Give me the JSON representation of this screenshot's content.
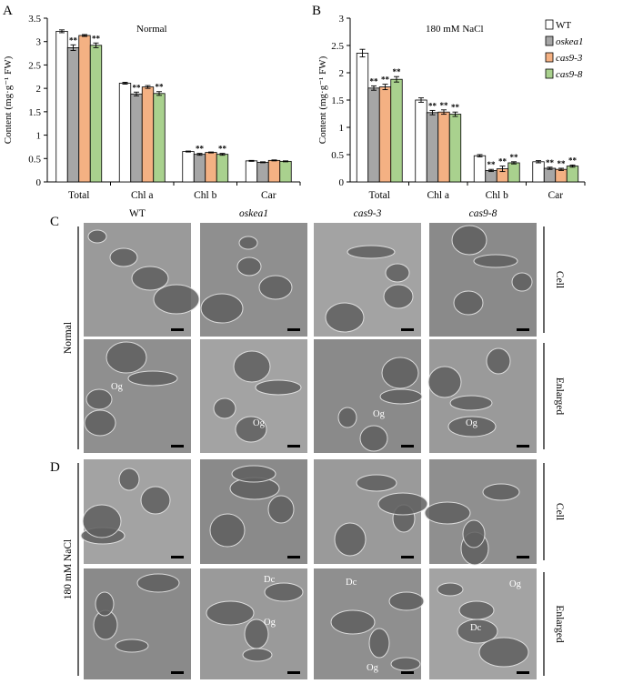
{
  "panels": {
    "A": "A",
    "B": "B",
    "C": "C",
    "D": "D"
  },
  "legend": {
    "items": [
      {
        "label": "WT",
        "color": "#ffffff",
        "italic": false
      },
      {
        "label": "oskea1",
        "color": "#a6a6a6",
        "italic": true
      },
      {
        "label": "cas9-3",
        "color": "#f4b183",
        "italic": true
      },
      {
        "label": "cas9-8",
        "color": "#a9d18e",
        "italic": true
      }
    ]
  },
  "chart_data": [
    {
      "type": "bar",
      "title": "Normal",
      "ylabel": "Content (mg·g⁻¹ FW)",
      "ylim": [
        0,
        3.5
      ],
      "yticks": [
        "0",
        "0.5",
        "1",
        "1.5",
        "2",
        "2.5",
        "3",
        "3.5"
      ],
      "categories": [
        "Total",
        "Chl a",
        "Chl b",
        "Car"
      ],
      "series": [
        {
          "name": "WT",
          "values": [
            3.22,
            2.11,
            0.65,
            0.45
          ],
          "errors": [
            0.03,
            0.02,
            0.01,
            0.01
          ],
          "stars": [
            "",
            "",
            "",
            ""
          ]
        },
        {
          "name": "oskea1",
          "values": [
            2.87,
            1.88,
            0.59,
            0.42
          ],
          "errors": [
            0.06,
            0.04,
            0.02,
            0.01
          ],
          "stars": [
            "**",
            "**",
            "**",
            ""
          ]
        },
        {
          "name": "cas9-3",
          "values": [
            3.13,
            2.03,
            0.63,
            0.46
          ],
          "errors": [
            0.02,
            0.03,
            0.01,
            0.01
          ],
          "stars": [
            "",
            "",
            "",
            ""
          ]
        },
        {
          "name": "cas9-8",
          "values": [
            2.92,
            1.89,
            0.59,
            0.44
          ],
          "errors": [
            0.05,
            0.04,
            0.02,
            0.01
          ],
          "stars": [
            "**",
            "**",
            "**",
            ""
          ]
        }
      ]
    },
    {
      "type": "bar",
      "title": "180 mM NaCl",
      "ylabel": "Content (mg·g⁻¹ FW)",
      "ylim": [
        0,
        3
      ],
      "yticks": [
        "0",
        "0.5",
        "1",
        "1.5",
        "2",
        "2.5",
        "3"
      ],
      "categories": [
        "Total",
        "Chl a",
        "Chl b",
        "Car"
      ],
      "series": [
        {
          "name": "WT",
          "values": [
            2.36,
            1.5,
            0.48,
            0.37
          ],
          "errors": [
            0.07,
            0.04,
            0.02,
            0.02
          ],
          "stars": [
            "",
            "",
            "",
            ""
          ]
        },
        {
          "name": "oskea1",
          "values": [
            1.72,
            1.27,
            0.21,
            0.25
          ],
          "errors": [
            0.04,
            0.04,
            0.02,
            0.02
          ],
          "stars": [
            "**",
            "**",
            "**",
            "**"
          ]
        },
        {
          "name": "cas9-3",
          "values": [
            1.74,
            1.28,
            0.24,
            0.23
          ],
          "errors": [
            0.05,
            0.04,
            0.05,
            0.02
          ],
          "stars": [
            "**",
            "**",
            "**",
            "**"
          ]
        },
        {
          "name": "cas9-8",
          "values": [
            1.88,
            1.24,
            0.35,
            0.29
          ],
          "errors": [
            0.05,
            0.04,
            0.02,
            0.02
          ],
          "stars": [
            "**",
            "**",
            "**",
            "**"
          ]
        }
      ]
    }
  ],
  "micro": {
    "columns": [
      "WT",
      "oskea1",
      "cas9-3",
      "cas9-8"
    ],
    "conditions": [
      "Normal",
      "180 mM NaCl"
    ],
    "row_types": [
      "Cell",
      "Enlarged"
    ],
    "labels": {
      "og": "Og",
      "dc": "Dc"
    }
  }
}
